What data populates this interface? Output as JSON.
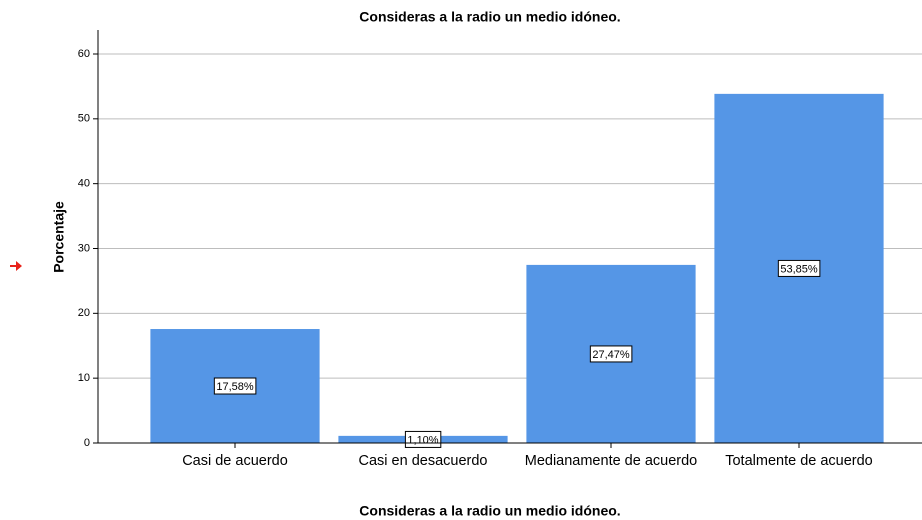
{
  "chart_data": {
    "type": "bar",
    "title": "Consideras a la radio un medio idóneo.",
    "x_label": "Consideras a la radio un medio idóneo.",
    "y_label": "Porcentaje",
    "categories": [
      "Casi de acuerdo",
      "Casi en desacuerdo",
      "Medianamente de acuerdo",
      "Totalmente de acuerdo"
    ],
    "values": [
      17.58,
      1.1,
      27.47,
      53.85
    ],
    "value_labels": [
      "17,58%",
      "1,10%",
      "27,47%",
      "53,85%"
    ],
    "color": "#5596e6",
    "ylim": [
      0,
      63.7
    ],
    "yticks": [
      0,
      10,
      20,
      30,
      40,
      50,
      60
    ],
    "grid": true
  }
}
